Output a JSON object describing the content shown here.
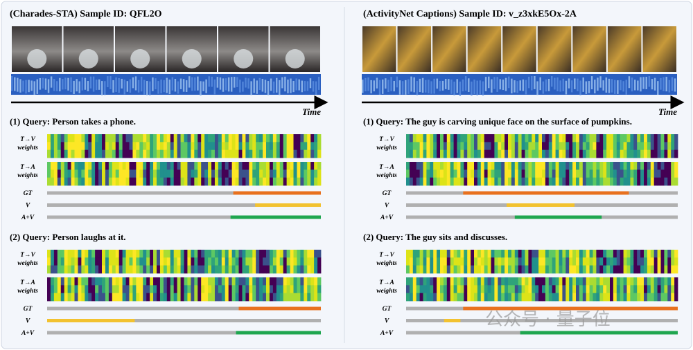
{
  "panels": [
    {
      "title": "(Charades-STA) Sample ID: QFL2O",
      "time_label": "Time",
      "queries": [
        {
          "query": "(1) Query: Person takes a phone.",
          "heatmaps": [
            {
              "label_lines": [
                "T→V",
                "weights"
              ]
            },
            {
              "label_lines": [
                "T→A",
                "weights"
              ]
            }
          ],
          "tracks": [
            {
              "label": "GT",
              "color": "#e8711f",
              "segment": [
                0.68,
                1.0
              ]
            },
            {
              "label": "V",
              "color": "#f2c230",
              "segment": [
                0.76,
                1.0
              ]
            },
            {
              "label": "A+V",
              "color": "#1fa64f",
              "segment": [
                0.67,
                1.0
              ]
            }
          ]
        },
        {
          "query": "(2) Query: Person laughs at it.",
          "heatmaps": [
            {
              "label_lines": [
                "T→V",
                "weights"
              ]
            },
            {
              "label_lines": [
                "T→A",
                "weights"
              ]
            }
          ],
          "tracks": [
            {
              "label": "GT",
              "color": "#e8711f",
              "segment": [
                0.7,
                1.0
              ]
            },
            {
              "label": "V",
              "color": "#f2c230",
              "segment": [
                0.0,
                0.32
              ]
            },
            {
              "label": "A+V",
              "color": "#1fa64f",
              "segment": [
                0.69,
                1.0
              ]
            }
          ]
        }
      ]
    },
    {
      "title": "(ActivityNet Captions) Sample ID: v_z3xkE5Ox-2A",
      "time_label": "Time",
      "queries": [
        {
          "query": "(1) Query: The guy is carving unique face on the surface of pumpkins.",
          "heatmaps": [
            {
              "label_lines": [
                "T→V",
                "weights"
              ]
            },
            {
              "label_lines": [
                "T→A",
                "weights"
              ]
            }
          ],
          "tracks": [
            {
              "label": "GT",
              "color": "#e8711f",
              "segment": [
                0.21,
                0.82
              ]
            },
            {
              "label": "V",
              "color": "#f2c230",
              "segment": [
                0.37,
                0.62
              ]
            },
            {
              "label": "A+V",
              "color": "#1fa64f",
              "segment": [
                0.4,
                0.72
              ]
            }
          ]
        },
        {
          "query": "(2) Query: The guy sits and discusses.",
          "heatmaps": [
            {
              "label_lines": [
                "T→V",
                "weights"
              ]
            },
            {
              "label_lines": [
                "T→A",
                "weights"
              ]
            }
          ],
          "tracks": [
            {
              "label": "GT",
              "color": "#e8711f",
              "segment": [
                0.21,
                1.0
              ]
            },
            {
              "label": "V",
              "color": "#f2c230",
              "segment": [
                0.14,
                0.2
              ]
            },
            {
              "label": "A+V",
              "color": "#1fa64f",
              "segment": [
                0.42,
                1.0
              ]
            }
          ]
        }
      ]
    }
  ],
  "watermark": "公众号 · 量子位"
}
